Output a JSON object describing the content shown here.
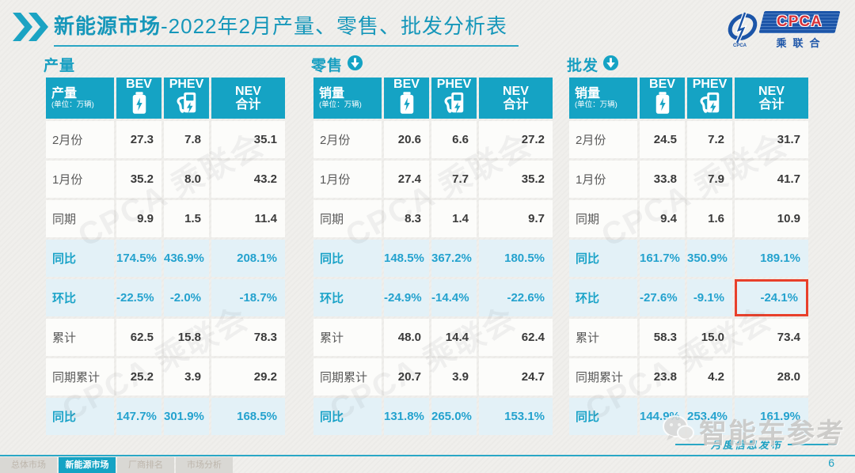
{
  "header": {
    "title_bold": "新能源市场",
    "title_rest": "-2022年2月产量、零售、批发分析表",
    "logo": {
      "name": "CPCA",
      "sub": "乘联合"
    }
  },
  "chart_data": [
    {
      "type": "table",
      "section_label": "产量",
      "arrow": false,
      "corner_label": "产量",
      "corner_unit": "(单位：万辆)",
      "columns": [
        {
          "label": "BEV",
          "icon": "battery-icon"
        },
        {
          "label": "PHEV",
          "icon": "charger-icon"
        },
        {
          "label": "NEV",
          "label2": "合计"
        }
      ],
      "rows": [
        {
          "label": "2月份",
          "values": [
            "27.3",
            "7.8",
            "35.1"
          ],
          "band": false
        },
        {
          "label": "1月份",
          "values": [
            "35.2",
            "8.0",
            "43.2"
          ],
          "band": false
        },
        {
          "label": "同期",
          "values": [
            "9.9",
            "1.5",
            "11.4"
          ],
          "band": false
        },
        {
          "label": "同比",
          "values": [
            "174.5%",
            "436.9%",
            "208.1%"
          ],
          "band": true
        },
        {
          "label": "环比",
          "values": [
            "-22.5%",
            "-2.0%",
            "-18.7%"
          ],
          "band": true
        },
        {
          "label": "累计",
          "values": [
            "62.5",
            "15.8",
            "78.3"
          ],
          "band": false
        },
        {
          "label": "同期累计",
          "values": [
            "25.2",
            "3.9",
            "29.2"
          ],
          "band": false
        },
        {
          "label": "同比",
          "values": [
            "147.7%",
            "301.9%",
            "168.5%"
          ],
          "band": true
        }
      ]
    },
    {
      "type": "table",
      "section_label": "零售",
      "arrow": true,
      "corner_label": "销量",
      "corner_unit": "(单位：万辆)",
      "columns": [
        {
          "label": "BEV",
          "icon": "battery-icon"
        },
        {
          "label": "PHEV",
          "icon": "charger-icon"
        },
        {
          "label": "NEV",
          "label2": "合计"
        }
      ],
      "rows": [
        {
          "label": "2月份",
          "values": [
            "20.6",
            "6.6",
            "27.2"
          ],
          "band": false
        },
        {
          "label": "1月份",
          "values": [
            "27.4",
            "7.7",
            "35.2"
          ],
          "band": false
        },
        {
          "label": "同期",
          "values": [
            "8.3",
            "1.4",
            "9.7"
          ],
          "band": false
        },
        {
          "label": "同比",
          "values": [
            "148.5%",
            "367.2%",
            "180.5%"
          ],
          "band": true
        },
        {
          "label": "环比",
          "values": [
            "-24.9%",
            "-14.4%",
            "-22.6%"
          ],
          "band": true
        },
        {
          "label": "累计",
          "values": [
            "48.0",
            "14.4",
            "62.4"
          ],
          "band": false
        },
        {
          "label": "同期累计",
          "values": [
            "20.7",
            "3.9",
            "24.7"
          ],
          "band": false
        },
        {
          "label": "同比",
          "values": [
            "131.8%",
            "265.0%",
            "153.1%"
          ],
          "band": true
        }
      ]
    },
    {
      "type": "table",
      "section_label": "批发",
      "arrow": true,
      "corner_label": "销量",
      "corner_unit": "(单位：万辆)",
      "columns": [
        {
          "label": "BEV",
          "icon": "battery-icon"
        },
        {
          "label": "PHEV",
          "icon": "charger-icon"
        },
        {
          "label": "NEV",
          "label2": "合计"
        }
      ],
      "rows": [
        {
          "label": "2月份",
          "values": [
            "24.5",
            "7.2",
            "31.7"
          ],
          "band": false
        },
        {
          "label": "1月份",
          "values": [
            "33.8",
            "7.9",
            "41.7"
          ],
          "band": false
        },
        {
          "label": "同期",
          "values": [
            "9.4",
            "1.6",
            "10.9"
          ],
          "band": false
        },
        {
          "label": "同比",
          "values": [
            "161.7%",
            "350.9%",
            "189.1%"
          ],
          "band": true
        },
        {
          "label": "环比",
          "values": [
            "-27.6%",
            "-9.1%",
            "-24.1%"
          ],
          "band": true
        },
        {
          "label": "累计",
          "values": [
            "58.3",
            "15.0",
            "73.4"
          ],
          "band": false
        },
        {
          "label": "同期累计",
          "values": [
            "23.8",
            "4.2",
            "28.0"
          ],
          "band": false
        },
        {
          "label": "同比",
          "values": [
            "144.9%",
            "253.4%",
            "161.9%"
          ],
          "band": true
        }
      ]
    }
  ],
  "annotations": {
    "red_box": {
      "table": 2,
      "row": 4,
      "col": 2
    }
  },
  "watermarks": {
    "ghost_text": "CPCA 乘联会",
    "brand_text": "智能车参考"
  },
  "footer": {
    "tabs": [
      "总体市场",
      "新能源市场",
      "厂商排名",
      "市场分析"
    ],
    "active_tab_index": 1,
    "publish_label": "月度信息发布",
    "page_number": "6"
  }
}
